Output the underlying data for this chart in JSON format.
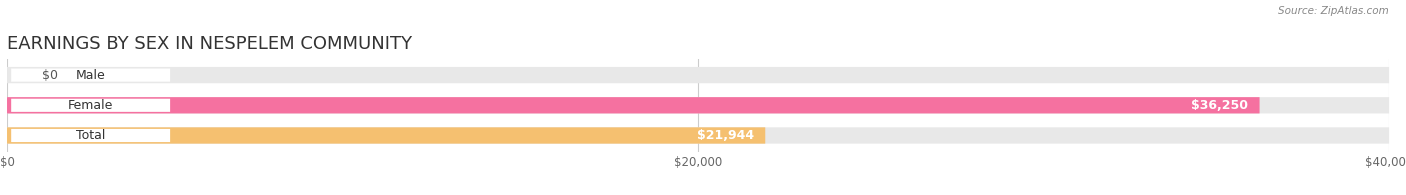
{
  "title": "EARNINGS BY SEX IN NESPELEM COMMUNITY",
  "source": "Source: ZipAtlas.com",
  "categories": [
    "Male",
    "Female",
    "Total"
  ],
  "values": [
    0,
    36250,
    21944
  ],
  "bar_colors": [
    "#a8c8e8",
    "#f571a0",
    "#f5c070"
  ],
  "bg_colors": [
    "#e8e8e8",
    "#e8e8e8",
    "#e8e8e8"
  ],
  "value_labels": [
    "$0",
    "$36,250",
    "$21,944"
  ],
  "tick_labels": [
    "$0",
    "$20,000",
    "$40,000"
  ],
  "tick_values": [
    0,
    20000,
    40000
  ],
  "xlim": [
    0,
    40000
  ],
  "title_fontsize": 13,
  "bar_height": 0.52,
  "background_color": "#ffffff"
}
